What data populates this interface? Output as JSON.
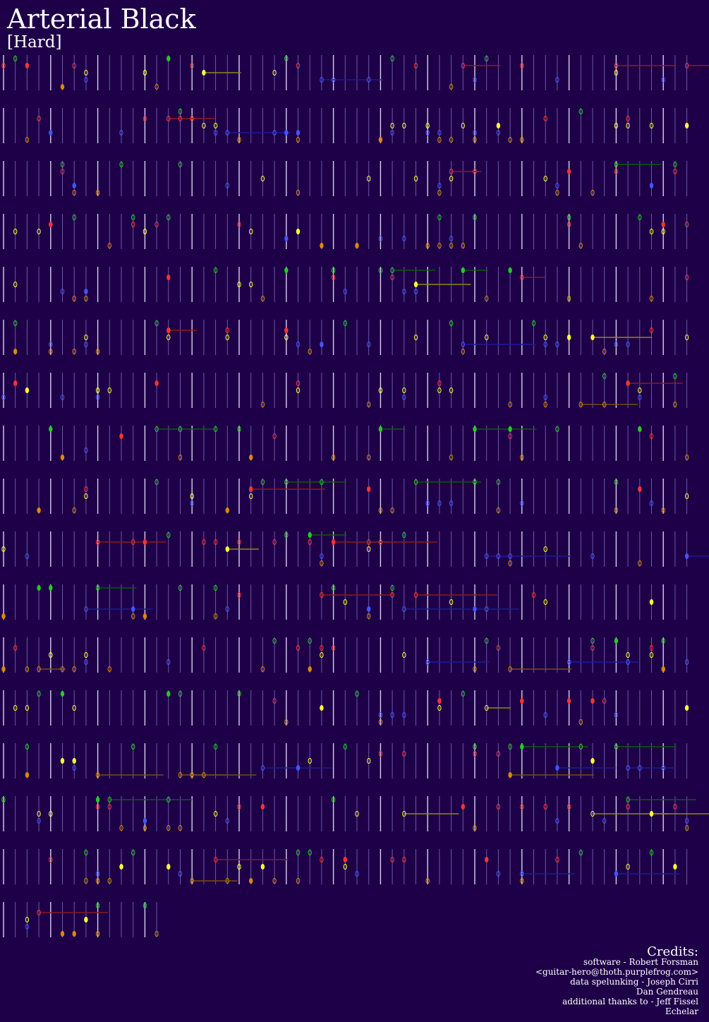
{
  "header": {
    "title": "Arterial Black",
    "difficulty": "[Hard]"
  },
  "credits": {
    "heading": "Credits:",
    "lines": [
      "software - Robert Forsman",
      "<guitar-hero@thoth.purplefrog.com>",
      "data spelunking - Joseph Cirri",
      "Dan Gendreau",
      "additional thanks to - Jeff Fissel",
      "Echelar"
    ]
  }
}
